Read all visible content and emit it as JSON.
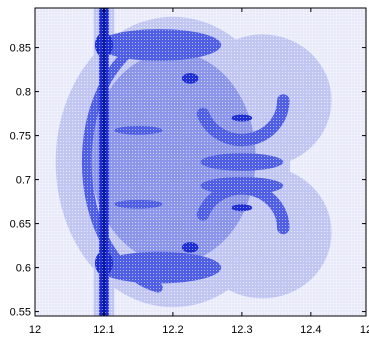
{
  "chart_data": {
    "type": "heatmap",
    "title": "",
    "xlabel": "",
    "ylabel": "",
    "xlim": [
      12.0,
      12.48
    ],
    "ylim": [
      0.545,
      0.895
    ],
    "x_ticks": [
      {
        "value": 12.0,
        "label": "12"
      },
      {
        "value": 12.1,
        "label": "12.1"
      },
      {
        "value": 12.2,
        "label": "12.2"
      },
      {
        "value": 12.3,
        "label": "12.3"
      },
      {
        "value": 12.4,
        "label": "12.4"
      },
      {
        "value": 12.48,
        "label": "12"
      }
    ],
    "y_ticks": [
      {
        "value": 0.55,
        "label": "0.55"
      },
      {
        "value": 0.6,
        "label": "0.6"
      },
      {
        "value": 0.65,
        "label": "0.65"
      },
      {
        "value": 0.7,
        "label": "0.7"
      },
      {
        "value": 0.75,
        "label": "0.75"
      },
      {
        "value": 0.8,
        "label": "0.8"
      },
      {
        "value": 0.85,
        "label": "0.85"
      }
    ],
    "grid": false,
    "colors": {
      "level1": "#eceefc",
      "level2": "#c3c8f4",
      "level3": "#8d97ec",
      "level4": "#5060e6",
      "level5": "#1f2fd6",
      "level6": "#0b1aa8"
    },
    "regions": [
      {
        "level": 1,
        "shape": "rect",
        "x": [
          12.0,
          12.48
        ],
        "y": [
          0.545,
          0.895
        ]
      },
      {
        "level": 2,
        "shape": "ellipse",
        "cx": 12.2,
        "cy": 0.72,
        "rx": 0.17,
        "ry": 0.165
      },
      {
        "level": 2,
        "shape": "ellipse",
        "cx": 12.33,
        "cy": 0.79,
        "rx": 0.1,
        "ry": 0.075
      },
      {
        "level": 2,
        "shape": "ellipse",
        "cx": 12.33,
        "cy": 0.64,
        "rx": 0.1,
        "ry": 0.075
      },
      {
        "level": 2,
        "shape": "rect",
        "x": [
          12.085,
          12.115
        ],
        "y": [
          0.545,
          0.895
        ]
      },
      {
        "level": 3,
        "shape": "ellipse",
        "cx": 12.2,
        "cy": 0.725,
        "rx": 0.12,
        "ry": 0.12
      },
      {
        "level": 4,
        "shape": "arc",
        "cx": 12.2,
        "cy": 0.72,
        "rx": 0.125,
        "ry": 0.145,
        "start": 100,
        "end": 260,
        "width": 0.014
      },
      {
        "level": 4,
        "shape": "ellipse",
        "cx": 12.18,
        "cy": 0.853,
        "rx": 0.09,
        "ry": 0.018
      },
      {
        "level": 4,
        "shape": "ellipse",
        "cx": 12.18,
        "cy": 0.6,
        "rx": 0.09,
        "ry": 0.018
      },
      {
        "level": 4,
        "shape": "arc",
        "cx": 12.3,
        "cy": 0.79,
        "rx": 0.06,
        "ry": 0.045,
        "start": 200,
        "end": 360,
        "width": 0.018
      },
      {
        "level": 4,
        "shape": "arc",
        "cx": 12.3,
        "cy": 0.645,
        "rx": 0.06,
        "ry": 0.045,
        "start": 0,
        "end": 160,
        "width": 0.018
      },
      {
        "level": 4,
        "shape": "ellipse",
        "cx": 12.3,
        "cy": 0.72,
        "rx": 0.06,
        "ry": 0.01
      },
      {
        "level": 4,
        "shape": "ellipse",
        "cx": 12.3,
        "cy": 0.693,
        "rx": 0.06,
        "ry": 0.01
      },
      {
        "level": 4,
        "shape": "ellipse",
        "cx": 12.15,
        "cy": 0.756,
        "rx": 0.035,
        "ry": 0.005
      },
      {
        "level": 4,
        "shape": "ellipse",
        "cx": 12.15,
        "cy": 0.672,
        "rx": 0.035,
        "ry": 0.005
      },
      {
        "level": 5,
        "shape": "rect",
        "x": [
          12.093,
          12.107
        ],
        "y": [
          0.545,
          0.895
        ]
      },
      {
        "level": 5,
        "shape": "ellipse",
        "cx": 12.1,
        "cy": 0.853,
        "rx": 0.013,
        "ry": 0.014
      },
      {
        "level": 5,
        "shape": "ellipse",
        "cx": 12.1,
        "cy": 0.605,
        "rx": 0.013,
        "ry": 0.014
      },
      {
        "level": 5,
        "shape": "ellipse",
        "cx": 12.225,
        "cy": 0.815,
        "rx": 0.012,
        "ry": 0.006
      },
      {
        "level": 5,
        "shape": "ellipse",
        "cx": 12.225,
        "cy": 0.623,
        "rx": 0.012,
        "ry": 0.006
      },
      {
        "level": 5,
        "shape": "ellipse",
        "cx": 12.3,
        "cy": 0.77,
        "rx": 0.015,
        "ry": 0.004
      },
      {
        "level": 5,
        "shape": "ellipse",
        "cx": 12.3,
        "cy": 0.668,
        "rx": 0.015,
        "ry": 0.004
      },
      {
        "level": 6,
        "shape": "rect",
        "x": [
          12.097,
          12.103
        ],
        "y": [
          0.545,
          0.895
        ]
      }
    ]
  }
}
